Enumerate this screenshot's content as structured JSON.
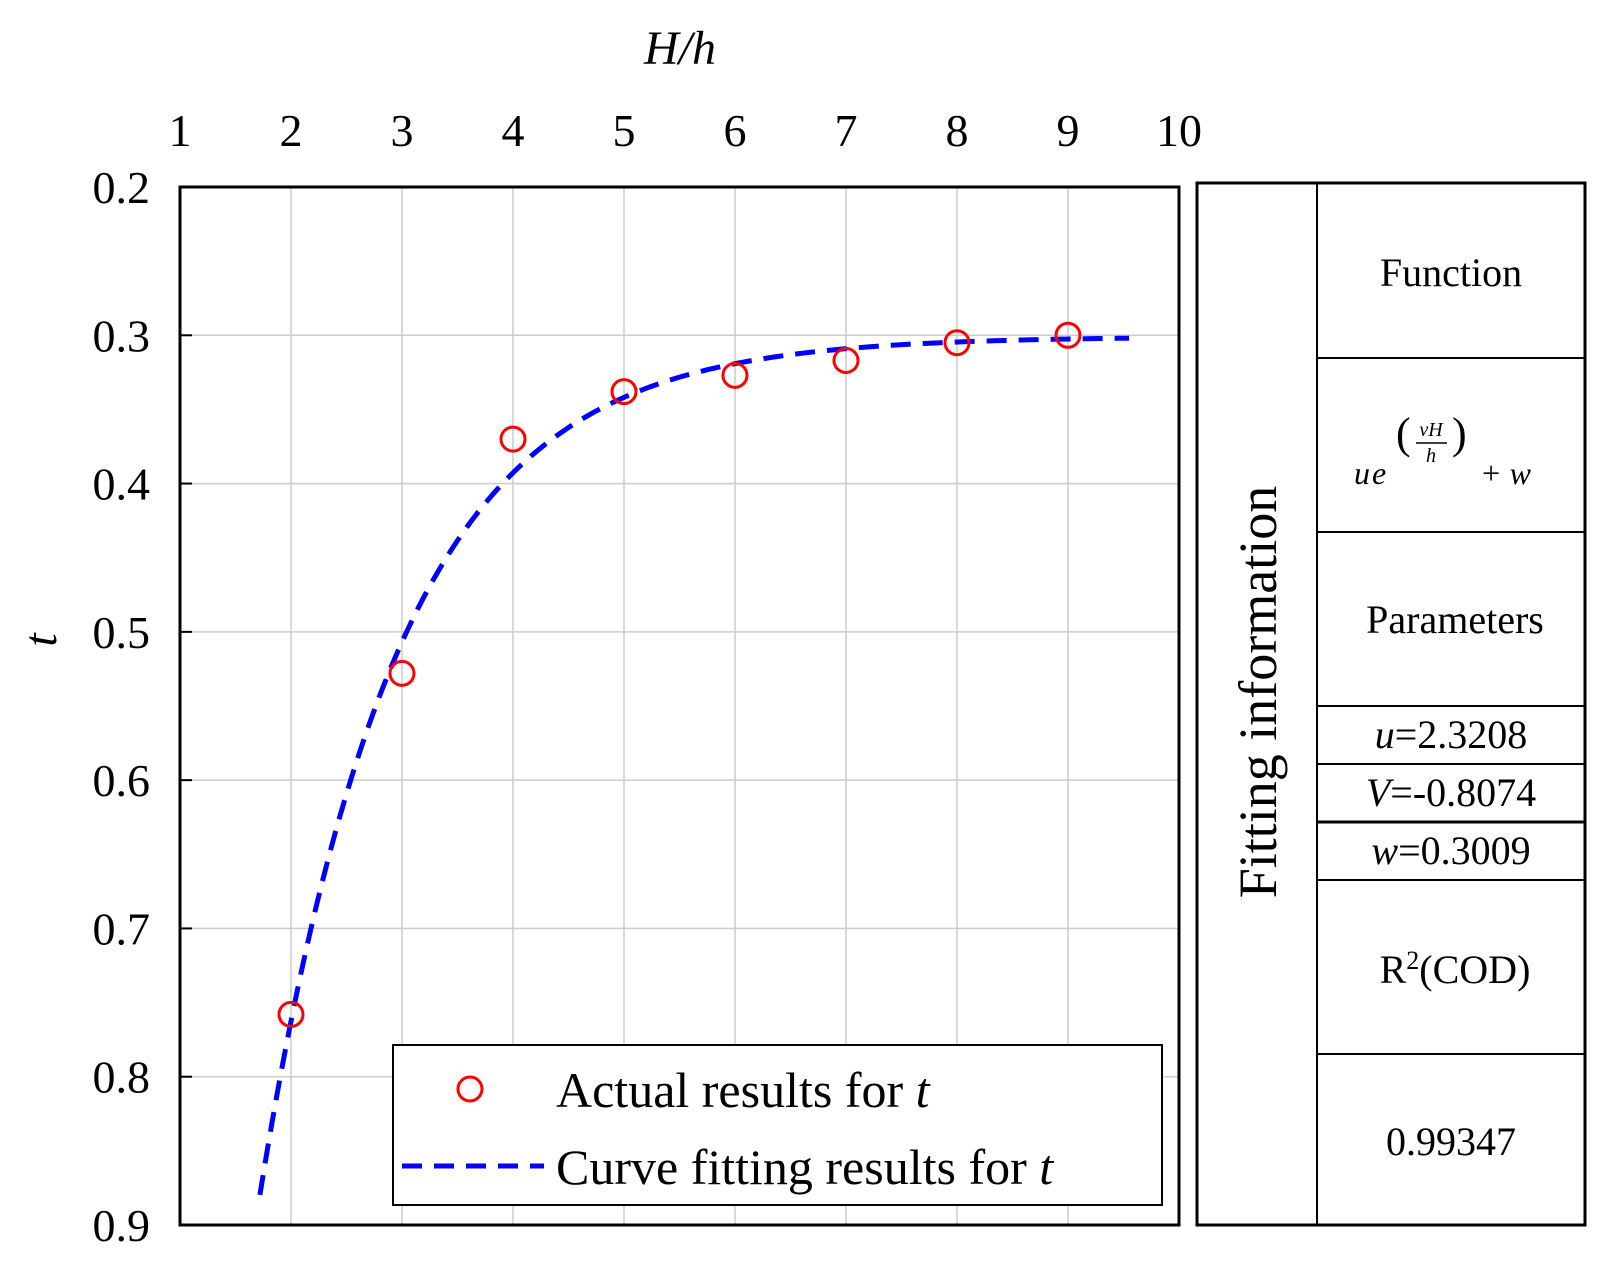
{
  "chart_data": {
    "type": "scatter",
    "xlabel": "H/h",
    "ylabel": "t",
    "xlim": [
      1,
      10
    ],
    "ylim": [
      0.2,
      0.9
    ],
    "y_inverted": true,
    "x_axis_position": "top",
    "grid": true,
    "x_ticks": [
      "1",
      "2",
      "3",
      "4",
      "5",
      "6",
      "7",
      "8",
      "9",
      "10"
    ],
    "y_ticks": [
      "0.2",
      "0.3",
      "0.4",
      "0.5",
      "0.6",
      "0.7",
      "0.8",
      "0.9"
    ],
    "legend_position": "bottom-right",
    "series": [
      {
        "name": "Actual results for t",
        "name_prefix": "Actual results for ",
        "name_var": "t",
        "kind": "scatter",
        "color": "#ff0000",
        "marker": "open-circle",
        "x": [
          2,
          3,
          4,
          5,
          6,
          7,
          8,
          9
        ],
        "y": [
          0.758,
          0.528,
          0.37,
          0.338,
          0.327,
          0.317,
          0.305,
          0.3
        ]
      },
      {
        "name": "Curve fitting results for t",
        "name_prefix": "Curve fitting results for ",
        "name_var": "t",
        "kind": "line",
        "style": "dashed",
        "color": "#0000ff",
        "x_range": [
          1.72,
          9.55
        ],
        "function": "u*exp(v*x)+w",
        "u": 2.3208,
        "v": -0.8074,
        "w": 0.3009
      }
    ]
  },
  "fitting_table": {
    "title": "Fitting information",
    "function_header": "Function",
    "function_expr": {
      "u": "u",
      "e": "e",
      "num": "vH",
      "den": "h",
      "plus": "+ w"
    },
    "parameters_header": "Parameters",
    "params": [
      {
        "name": "u",
        "value": "=2.3208"
      },
      {
        "name": "V",
        "value": "=-0.8074"
      },
      {
        "name": "w",
        "value": "=0.3009"
      }
    ],
    "r2_header": {
      "base": "R",
      "sup": "2",
      "rest": "(COD)"
    },
    "r2_value": "0.99347"
  }
}
